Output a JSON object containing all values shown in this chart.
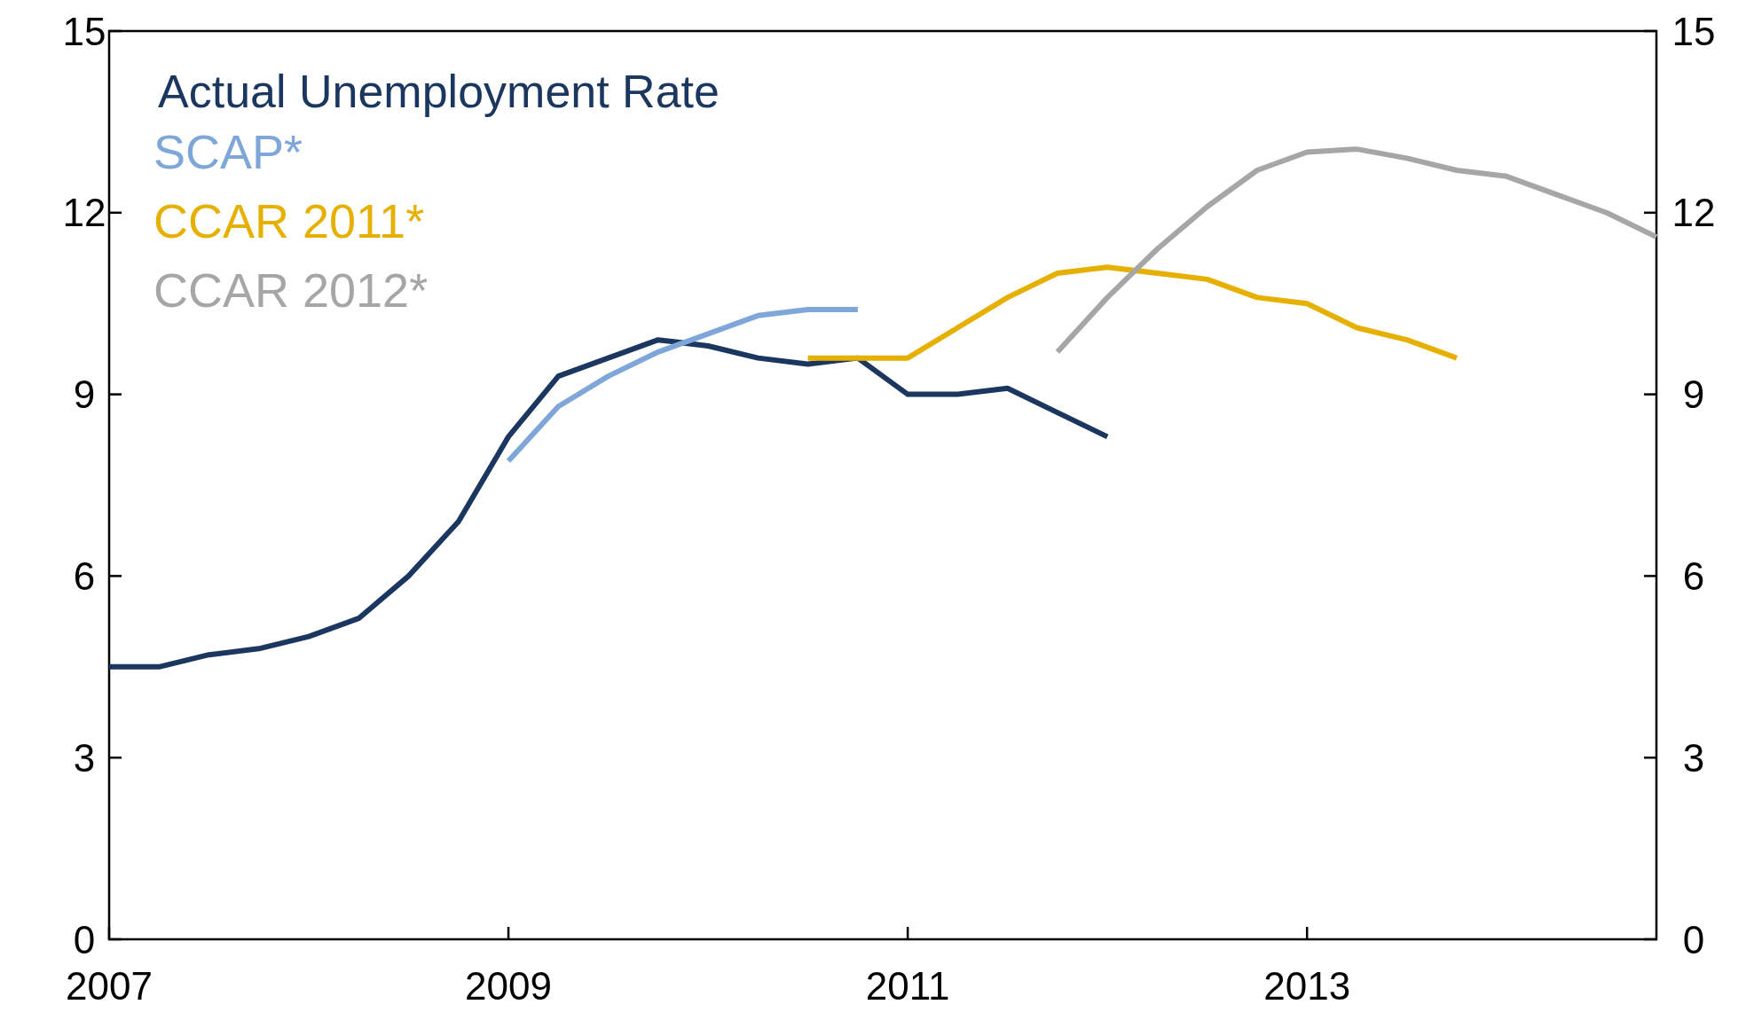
{
  "chart_data": {
    "type": "line",
    "xlim": [
      2007,
      2014.75
    ],
    "xticks": [
      2007,
      2009,
      2011,
      2013
    ],
    "ylim": [
      0,
      15
    ],
    "yticks": [
      0,
      3,
      6,
      9,
      12,
      15
    ],
    "y2lim": [
      0,
      15
    ],
    "y2ticks": [
      0,
      3,
      6,
      9,
      12,
      15
    ],
    "grid": false,
    "legend": "top left",
    "marker": "none",
    "line_style": "solid",
    "series": [
      {
        "name": "Actual Unemployment Rate",
        "color": "#1b375f",
        "x": [
          2007,
          2007.25,
          2007.5,
          2007.75,
          2008,
          2008.25,
          2008.5,
          2008.75,
          2009,
          2009.25,
          2009.5,
          2009.75,
          2010,
          2010.25,
          2010.5,
          2010.75,
          2011,
          2011.25,
          2011.5,
          2011.75,
          2012
        ],
        "values": [
          4.5,
          4.5,
          4.7,
          4.8,
          5.0,
          5.3,
          6.0,
          6.9,
          8.3,
          9.3,
          9.6,
          9.9,
          9.8,
          9.6,
          9.5,
          9.6,
          9.0,
          9.0,
          9.1,
          8.7,
          8.3
        ]
      },
      {
        "name": "SCAP*",
        "color": "#7ea6d8",
        "x": [
          2009,
          2009.25,
          2009.5,
          2009.75,
          2010,
          2010.25,
          2010.5,
          2010.75
        ],
        "values": [
          7.9,
          8.8,
          9.3,
          9.7,
          10.0,
          10.3,
          10.4,
          10.4
        ]
      },
      {
        "name": "CCAR 2011*",
        "color": "#e6b000",
        "x": [
          2010.5,
          2010.75,
          2011,
          2011.25,
          2011.5,
          2011.75,
          2012,
          2012.25,
          2012.5,
          2012.75,
          2013,
          2013.25,
          2013.5,
          2013.75
        ],
        "values": [
          9.6,
          9.6,
          9.6,
          10.1,
          10.6,
          11.0,
          11.1,
          11.0,
          10.9,
          10.6,
          10.5,
          10.1,
          9.9,
          9.6
        ]
      },
      {
        "name": "CCAR 2012*",
        "color": "#a6a6a6",
        "x": [
          2011.75,
          2012,
          2012.25,
          2012.5,
          2012.75,
          2013,
          2013.25,
          2013.5,
          2013.75,
          2014,
          2014.25,
          2014.5,
          2014.75
        ],
        "values": [
          9.7,
          10.6,
          11.4,
          12.1,
          12.7,
          13.0,
          13.05,
          12.9,
          12.7,
          12.6,
          12.3,
          12.0,
          11.6
        ]
      }
    ]
  }
}
